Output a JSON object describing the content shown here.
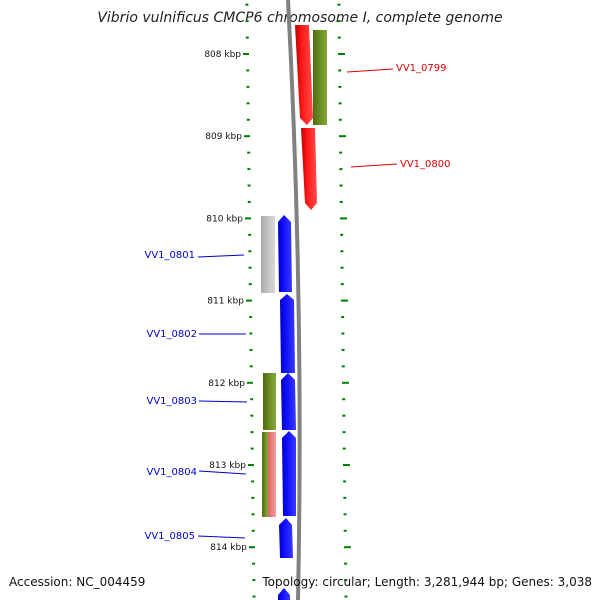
{
  "title": "Vibrio vulnificus CMCP6 chromosome I, complete genome",
  "accession": "Accession: NC_004459",
  "topology": "Topology: circular; Length: 3,281,944 bp; Genes: 3,038",
  "colors": {
    "forward_cds": "#ff0000",
    "reverse_cds": "#0000ff",
    "cog_olive": "#6b8e23",
    "cog_gray": "#bdbdbd",
    "cog_pink": "#f08080",
    "tick": "#008000",
    "backbone": "#808080",
    "forward_label": "#dd0000",
    "reverse_label": "#0000cc"
  },
  "ticks": [
    {
      "kbp": 808,
      "label": "808 kbp"
    },
    {
      "kbp": 809,
      "label": "809 kbp"
    },
    {
      "kbp": 810,
      "label": "810 kbp"
    },
    {
      "kbp": 811,
      "label": "811 kbp"
    },
    {
      "kbp": 812,
      "label": "812 kbp"
    },
    {
      "kbp": 813,
      "label": "813 kbp"
    },
    {
      "kbp": 814,
      "label": "814 kbp"
    }
  ],
  "genes": [
    {
      "name": "VV1_0799",
      "strand": "forward"
    },
    {
      "name": "VV1_0800",
      "strand": "forward"
    },
    {
      "name": "VV1_0801",
      "strand": "reverse"
    },
    {
      "name": "VV1_0802",
      "strand": "reverse"
    },
    {
      "name": "VV1_0803",
      "strand": "reverse"
    },
    {
      "name": "VV1_0804",
      "strand": "reverse"
    },
    {
      "name": "VV1_0805",
      "strand": "reverse"
    }
  ]
}
